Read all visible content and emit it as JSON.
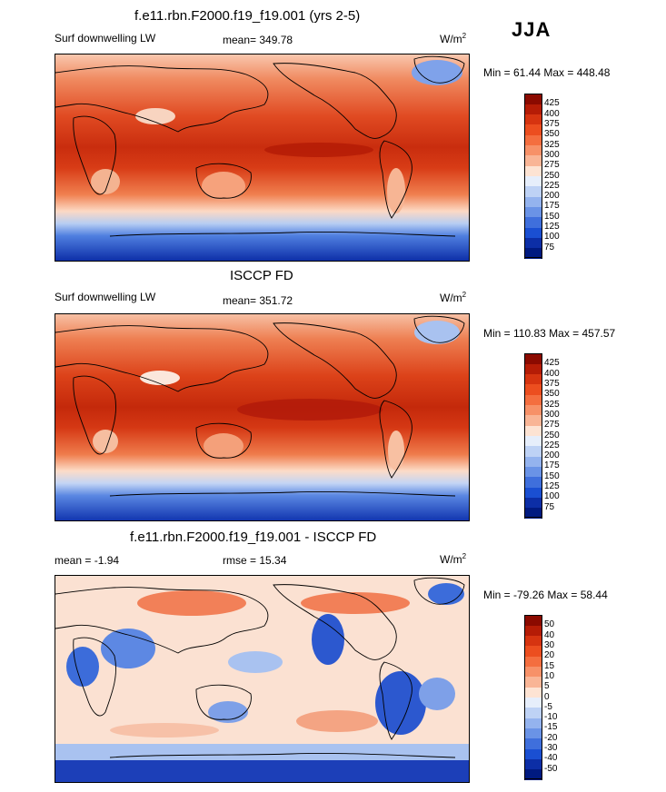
{
  "season": "JJA",
  "panels": [
    {
      "title": "f.e11.rbn.F2000.f19_f19.001 (yrs 2-5)",
      "left_label": "Surf downwelling LW",
      "center_label": "mean= 349.78",
      "units": "W/m",
      "units_sup": "2",
      "minmax": "Min =  61.44 Max = 448.48",
      "colorbar": {
        "labels": [
          "425",
          "400",
          "375",
          "350",
          "325",
          "300",
          "275",
          "250",
          "225",
          "200",
          "175",
          "150",
          "125",
          "100",
          "75"
        ],
        "colors": [
          "#8b0a00",
          "#b51c06",
          "#d63410",
          "#ec4e1f",
          "#f46e3f",
          "#f79168",
          "#f9b596",
          "#fde3d3",
          "#e6eefb",
          "#bed2f5",
          "#94b3ee",
          "#6a93e6",
          "#3f6fdc",
          "#1a4fd2",
          "#0c2ea6",
          "#001a80"
        ]
      }
    },
    {
      "title": "ISCCP FD",
      "left_label": "Surf downwelling LW",
      "center_label": "mean= 351.72",
      "units": "W/m",
      "units_sup": "2",
      "minmax": "Min = 110.83 Max = 457.57",
      "colorbar": {
        "labels": [
          "425",
          "400",
          "375",
          "350",
          "325",
          "300",
          "275",
          "250",
          "225",
          "200",
          "175",
          "150",
          "125",
          "100",
          "75"
        ],
        "colors": [
          "#8b0a00",
          "#b51c06",
          "#d63410",
          "#ec4e1f",
          "#f46e3f",
          "#f79168",
          "#f9b596",
          "#fde3d3",
          "#e6eefb",
          "#bed2f5",
          "#94b3ee",
          "#6a93e6",
          "#3f6fdc",
          "#1a4fd2",
          "#0c2ea6",
          "#001a80"
        ]
      }
    },
    {
      "title": "f.e11.rbn.F2000.f19_f19.001 - ISCCP FD",
      "left_label": "mean =  -1.94",
      "center_label": "rmse =  15.34",
      "units": "W/m",
      "units_sup": "2",
      "minmax": "Min = -79.26 Max =  58.44",
      "colorbar": {
        "labels": [
          "50",
          "40",
          "30",
          "20",
          "15",
          "10",
          "5",
          "0",
          "-5",
          "-10",
          "-15",
          "-20",
          "-30",
          "-40",
          "-50"
        ],
        "colors": [
          "#8b0a00",
          "#b51c06",
          "#d63410",
          "#ec4e1f",
          "#f46e3f",
          "#f79168",
          "#f9b596",
          "#fde3d3",
          "#e6eefb",
          "#bed2f5",
          "#94b3ee",
          "#6a93e6",
          "#3f6fdc",
          "#1a4fd2",
          "#0c2ea6",
          "#001a80"
        ]
      }
    }
  ]
}
